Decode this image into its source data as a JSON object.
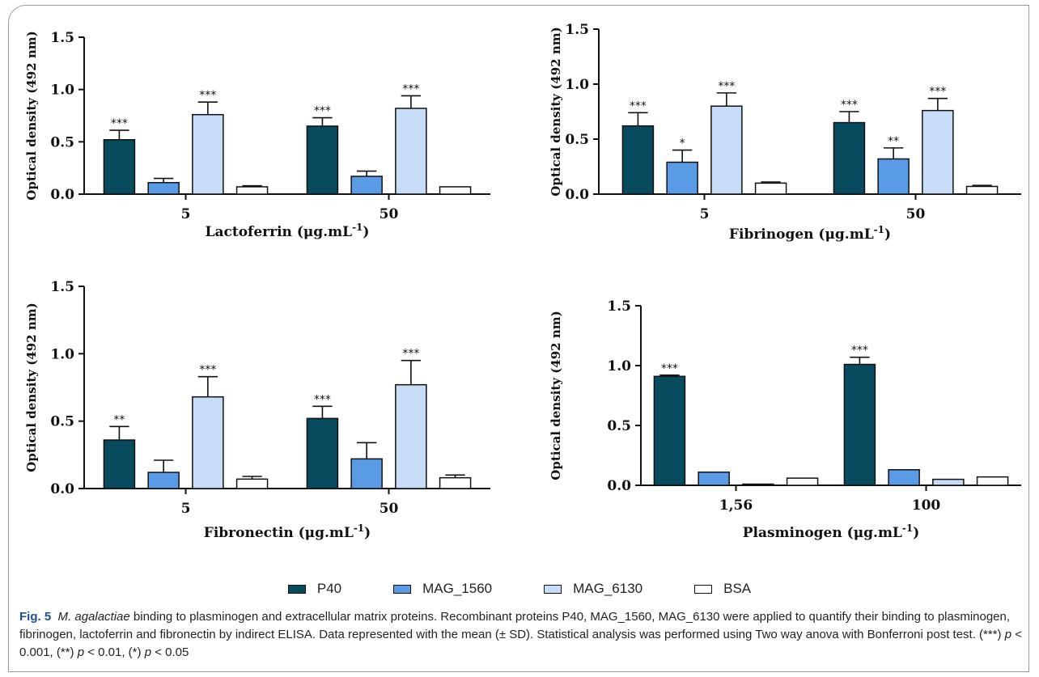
{
  "chart_data": [
    {
      "type": "bar",
      "xlabel": "Lactoferrin (μg.mL",
      "xlabel_sup": "-1",
      "xlabel_tail": ")",
      "ylabel": "Optical density (492 nm)",
      "categories": [
        "5",
        "50"
      ],
      "ylim": [
        0,
        1.5
      ],
      "yticks": [
        "0.0",
        "0.5",
        "1.0",
        "1.5"
      ],
      "series": [
        {
          "name": "P40",
          "values": [
            0.52,
            0.65
          ],
          "errors": [
            0.09,
            0.08
          ],
          "sig": [
            "***",
            "***"
          ]
        },
        {
          "name": "MAG_1560",
          "values": [
            0.11,
            0.17
          ],
          "errors": [
            0.04,
            0.05
          ],
          "sig": [
            "",
            ""
          ]
        },
        {
          "name": "MAG_6130",
          "values": [
            0.76,
            0.82
          ],
          "errors": [
            0.12,
            0.12
          ],
          "sig": [
            "***",
            "***"
          ]
        },
        {
          "name": "BSA",
          "values": [
            0.07,
            0.07
          ],
          "errors": [
            0.01,
            0.0
          ],
          "sig": [
            "",
            ""
          ]
        }
      ]
    },
    {
      "type": "bar",
      "xlabel": "Fibrinogen (μg.mL",
      "xlabel_sup": "-1",
      "xlabel_tail": ")",
      "ylabel": "Optical density (492 nm)",
      "categories": [
        "5",
        "50"
      ],
      "ylim": [
        0,
        1.5
      ],
      "yticks": [
        "0.0",
        "0.5",
        "1.0",
        "1.5"
      ],
      "series": [
        {
          "name": "P40",
          "values": [
            0.62,
            0.65
          ],
          "errors": [
            0.12,
            0.1
          ],
          "sig": [
            "***",
            "***"
          ]
        },
        {
          "name": "MAG_1560",
          "values": [
            0.29,
            0.32
          ],
          "errors": [
            0.11,
            0.1
          ],
          "sig": [
            "*",
            "**"
          ]
        },
        {
          "name": "MAG_6130",
          "values": [
            0.8,
            0.76
          ],
          "errors": [
            0.12,
            0.11
          ],
          "sig": [
            "***",
            "***"
          ]
        },
        {
          "name": "BSA",
          "values": [
            0.1,
            0.07
          ],
          "errors": [
            0.01,
            0.01
          ],
          "sig": [
            "",
            ""
          ]
        }
      ]
    },
    {
      "type": "bar",
      "xlabel": "Fibronectin (μg.mL",
      "xlabel_sup": "-1",
      "xlabel_tail": ")",
      "ylabel": "Optical density (492 nm)",
      "categories": [
        "5",
        "50"
      ],
      "ylim": [
        0,
        1.5
      ],
      "yticks": [
        "0.0",
        "0.5",
        "1.0",
        "1.5"
      ],
      "series": [
        {
          "name": "P40",
          "values": [
            0.36,
            0.52
          ],
          "errors": [
            0.1,
            0.09
          ],
          "sig": [
            "**",
            "***"
          ]
        },
        {
          "name": "MAG_1560",
          "values": [
            0.12,
            0.22
          ],
          "errors": [
            0.09,
            0.12
          ],
          "sig": [
            "",
            ""
          ]
        },
        {
          "name": "MAG_6130",
          "values": [
            0.68,
            0.77
          ],
          "errors": [
            0.15,
            0.18
          ],
          "sig": [
            "***",
            "***"
          ]
        },
        {
          "name": "BSA",
          "values": [
            0.07,
            0.08
          ],
          "errors": [
            0.02,
            0.02
          ],
          "sig": [
            "",
            ""
          ]
        }
      ]
    },
    {
      "type": "bar",
      "xlabel": "Plasminogen (μg.mL",
      "xlabel_sup": "-1",
      "xlabel_tail": ")",
      "ylabel": "Optical density (492 nm)",
      "categories": [
        "1,56",
        "100"
      ],
      "ylim": [
        0,
        1.5
      ],
      "yticks": [
        "0.0",
        "0.5",
        "1.0",
        "1.5"
      ],
      "series": [
        {
          "name": "P40",
          "values": [
            0.91,
            1.01
          ],
          "errors": [
            0.01,
            0.06
          ],
          "sig": [
            "***",
            "***"
          ]
        },
        {
          "name": "MAG_1560",
          "values": [
            0.11,
            0.13
          ],
          "errors": [
            0.0,
            0.0
          ],
          "sig": [
            "",
            ""
          ]
        },
        {
          "name": "MAG_6130",
          "values": [
            0.01,
            0.05
          ],
          "errors": [
            0.0,
            0.0
          ],
          "sig": [
            "",
            ""
          ]
        },
        {
          "name": "BSA",
          "values": [
            0.06,
            0.07
          ],
          "errors": [
            0.0,
            0.0
          ],
          "sig": [
            "",
            ""
          ]
        }
      ]
    }
  ],
  "legend": [
    {
      "label": "P40",
      "color": "#084a5e"
    },
    {
      "label": "MAG_1560",
      "color": "#5a9be6"
    },
    {
      "label": "MAG_6130",
      "color": "#c6dcf7"
    },
    {
      "label": "BSA",
      "color": "#ffffff"
    }
  ],
  "caption": {
    "fig_label": "Fig. 5",
    "species": "M. agalactiae",
    "text1": " binding to plasminogen and extracellular matrix proteins. Recombinant proteins P40, MAG_1560, MAG_6130 were applied to quantify their binding to plasminogen, fibrinogen, lactoferrin and fibronectin by indirect ELISA. Data represented with the mean (± SD). Statistical analysis was performed using Two way anova with Bonferroni post test. (***) ",
    "p1": "p",
    "t1": " < 0.001, (**) ",
    "p2": "p",
    "t2": " < 0.01, (*) ",
    "p3": "p",
    "t3": " < 0.05"
  }
}
